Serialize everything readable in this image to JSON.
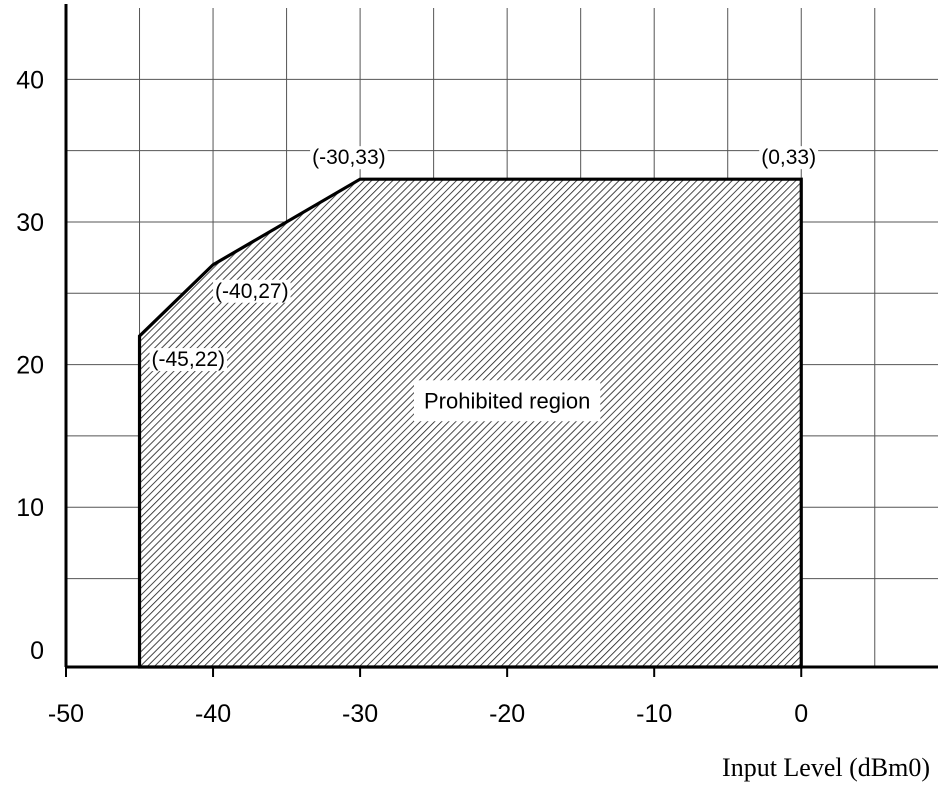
{
  "chart_data": {
    "type": "area",
    "title": "",
    "xlabel": "Input Level (dBm0)",
    "ylabel": "",
    "xlim": [
      -50,
      9.3
    ],
    "ylim": [
      -1.2,
      45
    ],
    "xticks": [
      -50,
      -40,
      -30,
      -20,
      -10,
      0
    ],
    "yticks": [
      0,
      10,
      20,
      30,
      40
    ],
    "x_grid_step": 5,
    "y_grid_step": 5,
    "grid": true,
    "series": [
      {
        "points": [
          {
            "x": -45,
            "y": -1.2
          },
          {
            "x": -45,
            "y": 22
          },
          {
            "x": -40,
            "y": 27
          },
          {
            "x": -30,
            "y": 33
          },
          {
            "x": 0,
            "y": 33
          },
          {
            "x": 0,
            "y": -1.2
          }
        ],
        "fill": "hatched"
      }
    ],
    "annotations": [
      {
        "text": "(-45,22)",
        "x": -45,
        "y": 22
      },
      {
        "text": "(-40,27)",
        "x": -40,
        "y": 27
      },
      {
        "text": "(-30,33)",
        "x": -30,
        "y": 33
      },
      {
        "text": "(0,33)",
        "x": 0,
        "y": 33
      }
    ],
    "region_label": "Prohibited region"
  }
}
